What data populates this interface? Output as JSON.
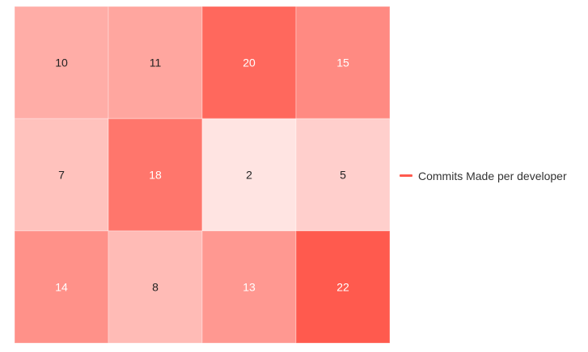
{
  "chart_data": {
    "type": "heatmap",
    "title": "",
    "xlabel": "",
    "ylabel": "",
    "series": [
      {
        "name": "Commits Made per developer",
        "color": "#ff5a4e",
        "rows": [
          [
            10,
            11,
            20,
            15
          ],
          [
            7,
            18,
            2,
            5
          ],
          [
            14,
            8,
            13,
            22
          ]
        ]
      }
    ],
    "value_range": [
      0,
      22
    ],
    "base_color": "#ff5a4e",
    "text_dark": "#222222",
    "text_light": "#ffffff",
    "legend": {
      "position": "right",
      "label": "Commits Made per developer",
      "color": "#ff5a4e"
    },
    "grid": false
  }
}
